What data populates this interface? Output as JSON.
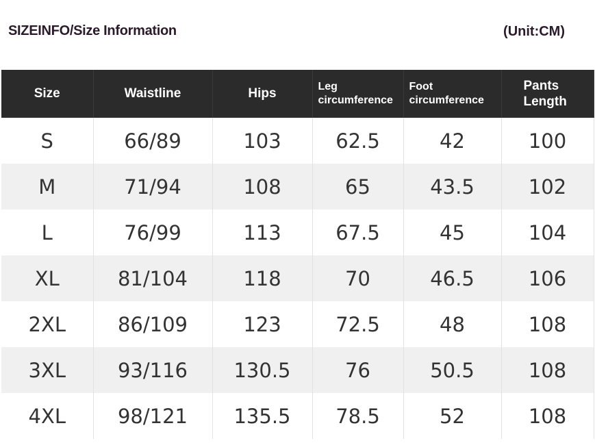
{
  "title": "SIZEINFO/Size Information",
  "unit": "(Unit:CM)",
  "columns": [
    "Size",
    "Waistline",
    "Hips",
    "Leg circumference",
    "Foot circumference",
    "Pants Length"
  ],
  "rows": [
    [
      "S",
      "66/89",
      "103",
      "62.5",
      "42",
      "100"
    ],
    [
      "M",
      "71/94",
      "108",
      "65",
      "43.5",
      "102"
    ],
    [
      "L",
      "76/99",
      "113",
      "67.5",
      "45",
      "104"
    ],
    [
      "XL",
      "81/104",
      "118",
      "70",
      "46.5",
      "106"
    ],
    [
      "2XL",
      "86/109",
      "123",
      "72.5",
      "48",
      "108"
    ],
    [
      "3XL",
      "93/116",
      "130.5",
      "76",
      "50.5",
      "108"
    ],
    [
      "4XL",
      "98/121",
      "135.5",
      "78.5",
      "52",
      "108"
    ]
  ],
  "colors": {
    "header_bg": "#2b2b2b",
    "alt_row_bg": "#f0f0f0"
  }
}
